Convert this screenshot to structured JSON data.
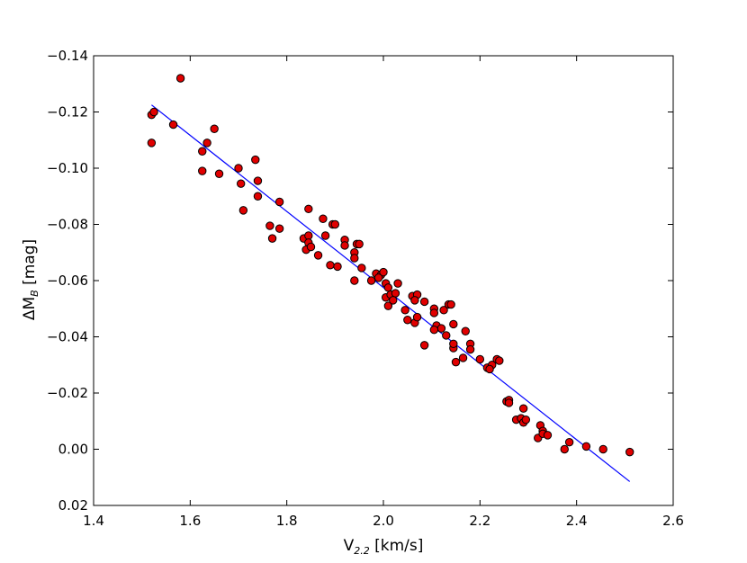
{
  "chart_data": {
    "type": "scatter",
    "title": "",
    "xlabel": {
      "main": "V",
      "sub": "2.2",
      "rest": " [km/s]"
    },
    "ylabel": {
      "main": "ΔM",
      "sub": "B",
      "rest": " [mag]"
    },
    "xlim": [
      1.4,
      2.6
    ],
    "ylim": [
      0.02,
      -0.14
    ],
    "y_inverted": true,
    "grid": false,
    "xticks": [
      "1.4",
      "1.6",
      "1.8",
      "2.0",
      "2.2",
      "2.4",
      "2.6"
    ],
    "yticks": [
      "−0.14",
      "−0.12",
      "−0.10",
      "−0.08",
      "−0.06",
      "−0.04",
      "−0.02",
      "0.00",
      "0.02"
    ],
    "colors": {
      "points": "#e00000",
      "point_edge": "#000000",
      "line": "#0000ff"
    },
    "fit_line": {
      "x": [
        1.52,
        2.51
      ],
      "y": [
        -0.1225,
        0.0115
      ]
    },
    "points": [
      [
        1.52,
        -0.119
      ],
      [
        1.525,
        -0.12
      ],
      [
        1.52,
        -0.109
      ],
      [
        1.58,
        -0.132
      ],
      [
        1.565,
        -0.1155
      ],
      [
        1.65,
        -0.114
      ],
      [
        1.625,
        -0.106
      ],
      [
        1.635,
        -0.109
      ],
      [
        1.625,
        -0.099
      ],
      [
        1.66,
        -0.098
      ],
      [
        1.7,
        -0.1
      ],
      [
        1.735,
        -0.103
      ],
      [
        1.74,
        -0.0955
      ],
      [
        1.705,
        -0.0945
      ],
      [
        1.74,
        -0.09
      ],
      [
        1.71,
        -0.085
      ],
      [
        1.785,
        -0.088
      ],
      [
        1.765,
        -0.0795
      ],
      [
        1.785,
        -0.0785
      ],
      [
        1.77,
        -0.075
      ],
      [
        1.845,
        -0.0855
      ],
      [
        1.875,
        -0.082
      ],
      [
        1.895,
        -0.08
      ],
      [
        1.9,
        -0.08
      ],
      [
        1.835,
        -0.075
      ],
      [
        1.845,
        -0.076
      ],
      [
        1.845,
        -0.0735
      ],
      [
        1.84,
        -0.071
      ],
      [
        1.85,
        -0.072
      ],
      [
        1.865,
        -0.069
      ],
      [
        1.88,
        -0.076
      ],
      [
        1.89,
        -0.0655
      ],
      [
        1.905,
        -0.065
      ],
      [
        1.92,
        -0.0745
      ],
      [
        1.92,
        -0.0725
      ],
      [
        1.94,
        -0.07
      ],
      [
        1.945,
        -0.073
      ],
      [
        1.94,
        -0.068
      ],
      [
        1.95,
        -0.073
      ],
      [
        1.955,
        -0.0645
      ],
      [
        1.94,
        -0.06
      ],
      [
        1.975,
        -0.06
      ],
      [
        1.985,
        -0.0625
      ],
      [
        1.995,
        -0.062
      ],
      [
        2.0,
        -0.063
      ],
      [
        1.99,
        -0.061
      ],
      [
        2.005,
        -0.059
      ],
      [
        2.01,
        -0.0575
      ],
      [
        2.005,
        -0.054
      ],
      [
        2.015,
        -0.055
      ],
      [
        2.025,
        -0.0555
      ],
      [
        2.03,
        -0.059
      ],
      [
        2.01,
        -0.051
      ],
      [
        2.02,
        -0.053
      ],
      [
        2.045,
        -0.0495
      ],
      [
        2.06,
        -0.0545
      ],
      [
        2.07,
        -0.055
      ],
      [
        2.065,
        -0.053
      ],
      [
        2.085,
        -0.0525
      ],
      [
        2.05,
        -0.046
      ],
      [
        2.065,
        -0.045
      ],
      [
        2.07,
        -0.047
      ],
      [
        2.105,
        -0.05
      ],
      [
        2.105,
        -0.0485
      ],
      [
        2.125,
        -0.0495
      ],
      [
        2.135,
        -0.0515
      ],
      [
        2.14,
        -0.0515
      ],
      [
        2.11,
        -0.044
      ],
      [
        2.12,
        -0.043
      ],
      [
        2.105,
        -0.0425
      ],
      [
        2.085,
        -0.037
      ],
      [
        2.13,
        -0.0405
      ],
      [
        2.145,
        -0.0445
      ],
      [
        2.145,
        -0.036
      ],
      [
        2.145,
        -0.0375
      ],
      [
        2.15,
        -0.031
      ],
      [
        2.17,
        -0.042
      ],
      [
        2.18,
        -0.0375
      ],
      [
        2.18,
        -0.0355
      ],
      [
        2.165,
        -0.0325
      ],
      [
        2.2,
        -0.032
      ],
      [
        2.215,
        -0.029
      ],
      [
        2.225,
        -0.03
      ],
      [
        2.22,
        -0.0285
      ],
      [
        2.235,
        -0.032
      ],
      [
        2.24,
        -0.0315
      ],
      [
        2.255,
        -0.017
      ],
      [
        2.26,
        -0.0175
      ],
      [
        2.26,
        -0.0165
      ],
      [
        2.29,
        -0.0145
      ],
      [
        2.275,
        -0.0105
      ],
      [
        2.285,
        -0.011
      ],
      [
        2.29,
        -0.0095
      ],
      [
        2.295,
        -0.0105
      ],
      [
        2.325,
        -0.0085
      ],
      [
        2.33,
        -0.0065
      ],
      [
        2.32,
        -0.004
      ],
      [
        2.33,
        -0.0055
      ],
      [
        2.34,
        -0.005
      ],
      [
        2.385,
        -0.0025
      ],
      [
        2.375,
        0.0
      ],
      [
        2.42,
        -0.001
      ],
      [
        2.455,
        0.0
      ],
      [
        2.51,
        0.001
      ]
    ]
  }
}
